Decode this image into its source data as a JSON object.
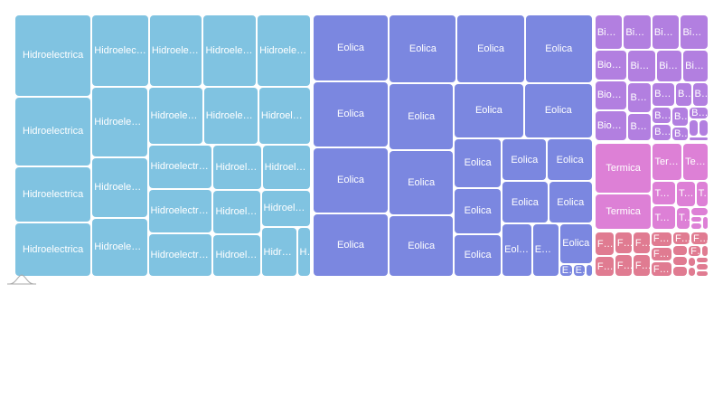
{
  "chart_data": {
    "type": "treemap",
    "series": [
      {
        "name": "Hidroelectrica",
        "color": "#80c3e1",
        "values": [
          74,
          63,
          51,
          49,
          49,
          46,
          46,
          46,
          46,
          40,
          39,
          37,
          37,
          35,
          34,
          34,
          33,
          26,
          26,
          25,
          24,
          22,
          21,
          8
        ]
      },
      {
        "name": "Eolica",
        "color": "#7b87e0",
        "values": [
          60,
          59,
          59,
          57,
          55,
          55,
          55,
          51,
          49,
          47,
          45,
          44,
          28,
          26,
          24,
          23,
          23,
          23,
          22,
          19,
          17,
          16,
          2,
          2,
          1
        ]
      },
      {
        "name": "Biomasa",
        "color": "#b27fe0",
        "values": [
          12,
          12,
          12,
          12,
          12,
          12,
          12,
          11,
          10,
          10,
          9,
          8,
          7,
          5,
          5,
          4,
          4,
          4,
          3,
          3,
          2,
          2,
          1
        ]
      },
      {
        "name": "Termica",
        "color": "#dd80d6",
        "values": [
          35,
          25,
          14,
          12,
          7,
          7,
          6,
          4,
          4,
          2,
          1,
          1,
          1
        ]
      },
      {
        "name": "Fotovoltaica",
        "color": "#e07b91",
        "values": [
          6,
          5,
          5,
          5,
          5,
          5,
          4,
          4,
          4,
          3,
          3,
          2,
          2,
          2,
          2,
          1,
          1,
          1,
          1,
          1,
          1
        ]
      }
    ]
  }
}
